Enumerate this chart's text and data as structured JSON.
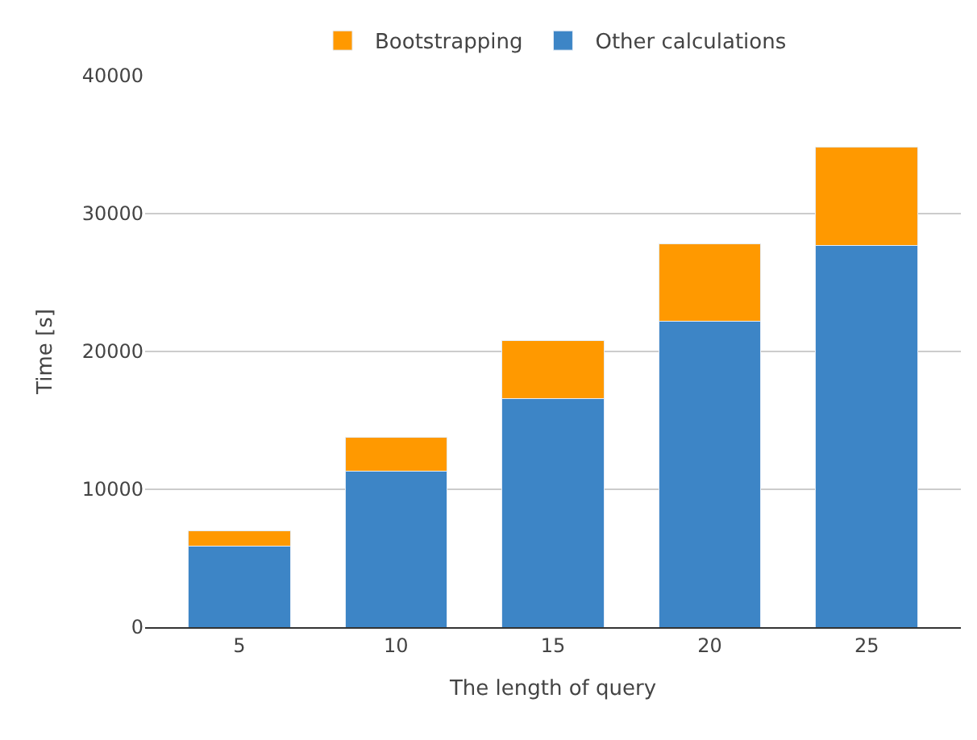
{
  "chart_data": {
    "type": "bar",
    "stacked": true,
    "xlabel": "The length of query",
    "ylabel": "Time [s]",
    "categories": [
      "5",
      "10",
      "15",
      "20",
      "25"
    ],
    "series": [
      {
        "name": "Other calculations",
        "color": "#3d85c6",
        "values": [
          5900,
          11300,
          16600,
          22200,
          27700
        ]
      },
      {
        "name": "Bootstrapping",
        "color": "#ff9900",
        "values": [
          1100,
          2500,
          4200,
          5600,
          7100
        ]
      }
    ],
    "ylim": [
      0,
      40000
    ],
    "yticks": [
      0,
      10000,
      20000,
      30000,
      40000
    ],
    "grid": "y",
    "legend": "top"
  }
}
